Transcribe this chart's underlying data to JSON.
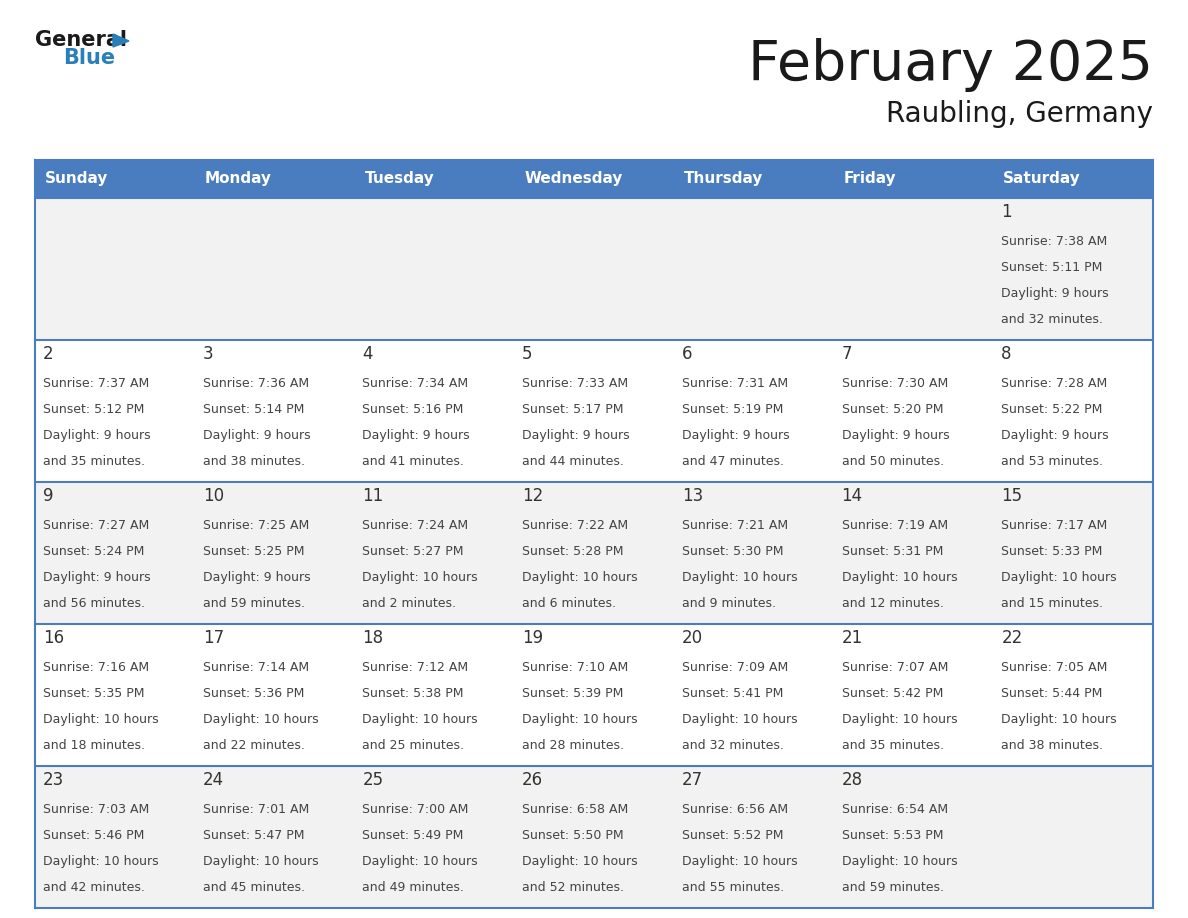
{
  "title": "February 2025",
  "subtitle": "Raubling, Germany",
  "days_of_week": [
    "Sunday",
    "Monday",
    "Tuesday",
    "Wednesday",
    "Thursday",
    "Friday",
    "Saturday"
  ],
  "header_bg": "#4a7dbf",
  "header_text": "#FFFFFF",
  "row_bg_odd": "#f2f2f2",
  "row_bg_even": "#ffffff",
  "border_color": "#4a7dbf",
  "text_color": "#444444",
  "day_number_color": "#333333",
  "logo_color_general": "#1a1a1a",
  "logo_color_blue": "#2980b9",
  "logo_triangle_color": "#2980b9",
  "calendar_data": [
    {
      "day": 1,
      "row": 0,
      "col": 6,
      "sunrise": "7:38 AM",
      "sunset": "5:11 PM",
      "daylight_h": "9 hours",
      "daylight_m": "and 32 minutes."
    },
    {
      "day": 2,
      "row": 1,
      "col": 0,
      "sunrise": "7:37 AM",
      "sunset": "5:12 PM",
      "daylight_h": "9 hours",
      "daylight_m": "and 35 minutes."
    },
    {
      "day": 3,
      "row": 1,
      "col": 1,
      "sunrise": "7:36 AM",
      "sunset": "5:14 PM",
      "daylight_h": "9 hours",
      "daylight_m": "and 38 minutes."
    },
    {
      "day": 4,
      "row": 1,
      "col": 2,
      "sunrise": "7:34 AM",
      "sunset": "5:16 PM",
      "daylight_h": "9 hours",
      "daylight_m": "and 41 minutes."
    },
    {
      "day": 5,
      "row": 1,
      "col": 3,
      "sunrise": "7:33 AM",
      "sunset": "5:17 PM",
      "daylight_h": "9 hours",
      "daylight_m": "and 44 minutes."
    },
    {
      "day": 6,
      "row": 1,
      "col": 4,
      "sunrise": "7:31 AM",
      "sunset": "5:19 PM",
      "daylight_h": "9 hours",
      "daylight_m": "and 47 minutes."
    },
    {
      "day": 7,
      "row": 1,
      "col": 5,
      "sunrise": "7:30 AM",
      "sunset": "5:20 PM",
      "daylight_h": "9 hours",
      "daylight_m": "and 50 minutes."
    },
    {
      "day": 8,
      "row": 1,
      "col": 6,
      "sunrise": "7:28 AM",
      "sunset": "5:22 PM",
      "daylight_h": "9 hours",
      "daylight_m": "and 53 minutes."
    },
    {
      "day": 9,
      "row": 2,
      "col": 0,
      "sunrise": "7:27 AM",
      "sunset": "5:24 PM",
      "daylight_h": "9 hours",
      "daylight_m": "and 56 minutes."
    },
    {
      "day": 10,
      "row": 2,
      "col": 1,
      "sunrise": "7:25 AM",
      "sunset": "5:25 PM",
      "daylight_h": "9 hours",
      "daylight_m": "and 59 minutes."
    },
    {
      "day": 11,
      "row": 2,
      "col": 2,
      "sunrise": "7:24 AM",
      "sunset": "5:27 PM",
      "daylight_h": "10 hours",
      "daylight_m": "and 2 minutes."
    },
    {
      "day": 12,
      "row": 2,
      "col": 3,
      "sunrise": "7:22 AM",
      "sunset": "5:28 PM",
      "daylight_h": "10 hours",
      "daylight_m": "and 6 minutes."
    },
    {
      "day": 13,
      "row": 2,
      "col": 4,
      "sunrise": "7:21 AM",
      "sunset": "5:30 PM",
      "daylight_h": "10 hours",
      "daylight_m": "and 9 minutes."
    },
    {
      "day": 14,
      "row": 2,
      "col": 5,
      "sunrise": "7:19 AM",
      "sunset": "5:31 PM",
      "daylight_h": "10 hours",
      "daylight_m": "and 12 minutes."
    },
    {
      "day": 15,
      "row": 2,
      "col": 6,
      "sunrise": "7:17 AM",
      "sunset": "5:33 PM",
      "daylight_h": "10 hours",
      "daylight_m": "and 15 minutes."
    },
    {
      "day": 16,
      "row": 3,
      "col": 0,
      "sunrise": "7:16 AM",
      "sunset": "5:35 PM",
      "daylight_h": "10 hours",
      "daylight_m": "and 18 minutes."
    },
    {
      "day": 17,
      "row": 3,
      "col": 1,
      "sunrise": "7:14 AM",
      "sunset": "5:36 PM",
      "daylight_h": "10 hours",
      "daylight_m": "and 22 minutes."
    },
    {
      "day": 18,
      "row": 3,
      "col": 2,
      "sunrise": "7:12 AM",
      "sunset": "5:38 PM",
      "daylight_h": "10 hours",
      "daylight_m": "and 25 minutes."
    },
    {
      "day": 19,
      "row": 3,
      "col": 3,
      "sunrise": "7:10 AM",
      "sunset": "5:39 PM",
      "daylight_h": "10 hours",
      "daylight_m": "and 28 minutes."
    },
    {
      "day": 20,
      "row": 3,
      "col": 4,
      "sunrise": "7:09 AM",
      "sunset": "5:41 PM",
      "daylight_h": "10 hours",
      "daylight_m": "and 32 minutes."
    },
    {
      "day": 21,
      "row": 3,
      "col": 5,
      "sunrise": "7:07 AM",
      "sunset": "5:42 PM",
      "daylight_h": "10 hours",
      "daylight_m": "and 35 minutes."
    },
    {
      "day": 22,
      "row": 3,
      "col": 6,
      "sunrise": "7:05 AM",
      "sunset": "5:44 PM",
      "daylight_h": "10 hours",
      "daylight_m": "and 38 minutes."
    },
    {
      "day": 23,
      "row": 4,
      "col": 0,
      "sunrise": "7:03 AM",
      "sunset": "5:46 PM",
      "daylight_h": "10 hours",
      "daylight_m": "and 42 minutes."
    },
    {
      "day": 24,
      "row": 4,
      "col": 1,
      "sunrise": "7:01 AM",
      "sunset": "5:47 PM",
      "daylight_h": "10 hours",
      "daylight_m": "and 45 minutes."
    },
    {
      "day": 25,
      "row": 4,
      "col": 2,
      "sunrise": "7:00 AM",
      "sunset": "5:49 PM",
      "daylight_h": "10 hours",
      "daylight_m": "and 49 minutes."
    },
    {
      "day": 26,
      "row": 4,
      "col": 3,
      "sunrise": "6:58 AM",
      "sunset": "5:50 PM",
      "daylight_h": "10 hours",
      "daylight_m": "and 52 minutes."
    },
    {
      "day": 27,
      "row": 4,
      "col": 4,
      "sunrise": "6:56 AM",
      "sunset": "5:52 PM",
      "daylight_h": "10 hours",
      "daylight_m": "and 55 minutes."
    },
    {
      "day": 28,
      "row": 4,
      "col": 5,
      "sunrise": "6:54 AM",
      "sunset": "5:53 PM",
      "daylight_h": "10 hours",
      "daylight_m": "and 59 minutes."
    }
  ],
  "num_rows": 5,
  "num_cols": 7,
  "fig_width": 11.88,
  "fig_height": 9.18,
  "dpi": 100
}
